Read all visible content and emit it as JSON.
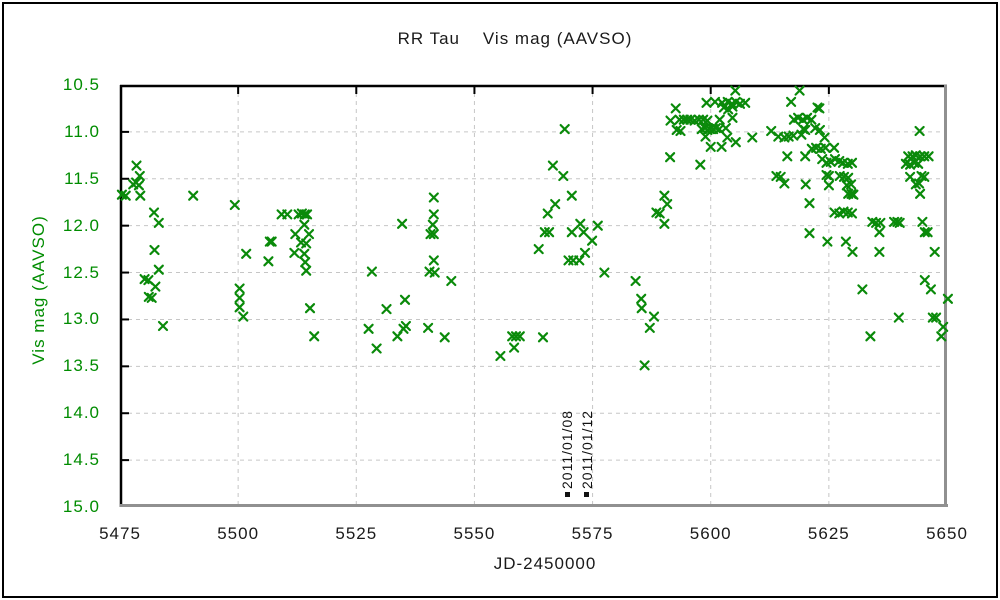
{
  "figure": {
    "background": "#ffffff",
    "frame_color": "#000000"
  },
  "chart_data": {
    "type": "scatter",
    "title": "RR Tau    Vis mag (AAVSO)",
    "xlabel": "JD-2450000",
    "ylabel": "Vis mag (AAVSO)",
    "xlim": [
      5475,
      5650
    ],
    "ylim_top": 10.5,
    "ylim_bottom": 15.0,
    "x_ticks": [
      5475,
      5500,
      5525,
      5550,
      5575,
      5600,
      5625,
      5650
    ],
    "y_ticks": [
      10.5,
      11.0,
      11.5,
      12.0,
      12.5,
      13.0,
      13.5,
      14.0,
      14.5,
      15.0
    ],
    "grid": true,
    "legend": "none",
    "marker": "x",
    "marker_color": "#0a8a0a",
    "y_label_color": "#008c00",
    "x_label_color": "#1a1a1a",
    "grid_color": "#c6c6c6",
    "axis_dark_color": "#000000",
    "axis_gray_color": "#909090",
    "annotations": [
      {
        "label": "2011/01/08",
        "x": 5569.6,
        "marker_mag": 14.87
      },
      {
        "label": "2011/01/12",
        "x": 5573.8,
        "marker_mag": 14.87
      }
    ],
    "points": [
      [
        5475.4,
        11.67
      ],
      [
        5476.2,
        11.68
      ],
      [
        5477.8,
        11.56
      ],
      [
        5478.4,
        11.54
      ],
      [
        5478.5,
        11.36
      ],
      [
        5479.0,
        11.57
      ],
      [
        5479.2,
        11.47
      ],
      [
        5479.3,
        11.68
      ],
      [
        5480.2,
        12.57
      ],
      [
        5481.0,
        12.58
      ],
      [
        5481.1,
        12.76
      ],
      [
        5481.7,
        12.77
      ],
      [
        5482.2,
        11.86
      ],
      [
        5482.3,
        12.26
      ],
      [
        5482.5,
        12.65
      ],
      [
        5483.2,
        11.97
      ],
      [
        5483.2,
        12.47
      ],
      [
        5484.1,
        13.07
      ],
      [
        5490.5,
        11.68
      ],
      [
        5499.3,
        11.78
      ],
      [
        5500.3,
        12.67
      ],
      [
        5500.3,
        12.77
      ],
      [
        5500.3,
        12.87
      ],
      [
        5501.1,
        12.97
      ],
      [
        5501.7,
        12.3
      ],
      [
        5506.4,
        12.38
      ],
      [
        5506.7,
        12.17
      ],
      [
        5507.1,
        12.17
      ],
      [
        5509.2,
        11.88
      ],
      [
        5510.4,
        11.88
      ],
      [
        5511.9,
        12.29
      ],
      [
        5512.1,
        12.09
      ],
      [
        5512.8,
        11.88
      ],
      [
        5513.3,
        12.18
      ],
      [
        5513.5,
        11.87
      ],
      [
        5514.0,
        11.99
      ],
      [
        5514.0,
        12.3
      ],
      [
        5514.1,
        11.88
      ],
      [
        5514.2,
        12.39
      ],
      [
        5514.4,
        12.19
      ],
      [
        5514.4,
        12.48
      ],
      [
        5514.6,
        11.88
      ],
      [
        5515.0,
        12.09
      ],
      [
        5515.2,
        12.88
      ],
      [
        5516.1,
        13.18
      ],
      [
        5527.6,
        13.1
      ],
      [
        5528.3,
        12.49
      ],
      [
        5529.3,
        13.31
      ],
      [
        5531.4,
        12.89
      ],
      [
        5533.7,
        13.18
      ],
      [
        5534.7,
        11.98
      ],
      [
        5535.0,
        13.1
      ],
      [
        5535.3,
        12.79
      ],
      [
        5535.5,
        13.07
      ],
      [
        5540.2,
        13.09
      ],
      [
        5540.5,
        12.49
      ],
      [
        5540.7,
        12.09
      ],
      [
        5541.2,
        11.99
      ],
      [
        5541.4,
        11.7
      ],
      [
        5541.4,
        11.88
      ],
      [
        5541.4,
        12.09
      ],
      [
        5541.4,
        12.37
      ],
      [
        5541.6,
        12.5
      ],
      [
        5543.7,
        13.19
      ],
      [
        5545.1,
        12.59
      ],
      [
        5555.5,
        13.39
      ],
      [
        5558.0,
        13.18
      ],
      [
        5558.4,
        13.3
      ],
      [
        5558.8,
        13.18
      ],
      [
        5559.6,
        13.18
      ],
      [
        5563.6,
        12.25
      ],
      [
        5564.5,
        13.19
      ],
      [
        5564.9,
        12.07
      ],
      [
        5565.5,
        11.87
      ],
      [
        5565.8,
        12.07
      ],
      [
        5566.6,
        11.36
      ],
      [
        5567.1,
        11.77
      ],
      [
        5568.8,
        11.47
      ],
      [
        5569.1,
        10.97
      ],
      [
        5569.9,
        12.37
      ],
      [
        5570.6,
        11.68
      ],
      [
        5570.6,
        12.07
      ],
      [
        5570.9,
        12.37
      ],
      [
        5572.2,
        12.37
      ],
      [
        5572.4,
        11.98
      ],
      [
        5573.1,
        12.07
      ],
      [
        5573.4,
        12.29
      ],
      [
        5574.9,
        12.16
      ],
      [
        5576.1,
        12.0
      ],
      [
        5577.5,
        12.5
      ],
      [
        5584.1,
        12.59
      ],
      [
        5585.3,
        12.78
      ],
      [
        5585.4,
        12.88
      ],
      [
        5586.0,
        13.49
      ],
      [
        5587.1,
        13.09
      ],
      [
        5588.0,
        12.97
      ],
      [
        5588.5,
        11.86
      ],
      [
        5589.2,
        11.87
      ],
      [
        5590.2,
        11.68
      ],
      [
        5590.2,
        11.98
      ],
      [
        5590.8,
        11.77
      ],
      [
        5591.4,
        11.27
      ],
      [
        5591.5,
        10.88
      ],
      [
        5592.6,
        10.75
      ],
      [
        5592.8,
        10.98
      ],
      [
        5593.4,
        10.87
      ],
      [
        5593.6,
        10.99
      ],
      [
        5594.3,
        10.87
      ],
      [
        5595.0,
        10.87
      ],
      [
        5595.7,
        10.87
      ],
      [
        5596.6,
        10.88
      ],
      [
        5597.5,
        10.87
      ],
      [
        5597.8,
        11.35
      ],
      [
        5598.1,
        10.97
      ],
      [
        5598.4,
        10.87
      ],
      [
        5598.8,
        10.96
      ],
      [
        5598.9,
        11.05
      ],
      [
        5599.1,
        10.69
      ],
      [
        5599.3,
        10.88
      ],
      [
        5599.3,
        10.98
      ],
      [
        5599.8,
        10.97
      ],
      [
        5600.0,
        11.16
      ],
      [
        5600.5,
        10.97
      ],
      [
        5600.9,
        10.68
      ],
      [
        5601.1,
        10.96
      ],
      [
        5601.8,
        10.97
      ],
      [
        5601.9,
        10.87
      ],
      [
        5602.3,
        11.16
      ],
      [
        5602.4,
        10.69
      ],
      [
        5602.8,
        10.74
      ],
      [
        5603.2,
        10.96
      ],
      [
        5603.5,
        11.06
      ],
      [
        5603.6,
        10.68
      ],
      [
        5603.7,
        10.76
      ],
      [
        5604.5,
        10.7
      ],
      [
        5604.6,
        10.73
      ],
      [
        5604.6,
        10.85
      ],
      [
        5605.2,
        10.56
      ],
      [
        5605.3,
        10.68
      ],
      [
        5605.3,
        11.11
      ],
      [
        5606.2,
        10.7
      ],
      [
        5607.3,
        10.69
      ],
      [
        5608.8,
        11.06
      ],
      [
        5612.8,
        10.99
      ],
      [
        5613.9,
        11.47
      ],
      [
        5614.3,
        11.05
      ],
      [
        5614.8,
        11.48
      ],
      [
        5615.6,
        11.06
      ],
      [
        5615.6,
        11.55
      ],
      [
        5616.2,
        11.26
      ],
      [
        5616.5,
        11.05
      ],
      [
        5617.0,
        10.68
      ],
      [
        5617.5,
        11.04
      ],
      [
        5617.6,
        10.87
      ],
      [
        5618.5,
        10.85
      ],
      [
        5618.8,
        10.56
      ],
      [
        5619.2,
        11.03
      ],
      [
        5619.5,
        10.87
      ],
      [
        5619.6,
        10.97
      ],
      [
        5620.0,
        10.98
      ],
      [
        5620.0,
        11.26
      ],
      [
        5620.1,
        11.56
      ],
      [
        5620.4,
        10.85
      ],
      [
        5620.9,
        11.76
      ],
      [
        5620.9,
        12.08
      ],
      [
        5621.3,
        10.87
      ],
      [
        5621.4,
        11.18
      ],
      [
        5622.1,
        10.96
      ],
      [
        5622.3,
        11.17
      ],
      [
        5622.6,
        10.74
      ],
      [
        5623.0,
        10.75
      ],
      [
        5623.1,
        10.98
      ],
      [
        5623.3,
        11.18
      ],
      [
        5623.6,
        11.29
      ],
      [
        5624.1,
        11.06
      ],
      [
        5624.3,
        11.17
      ],
      [
        5624.5,
        11.33
      ],
      [
        5624.5,
        11.46
      ],
      [
        5624.7,
        12.17
      ],
      [
        5625.0,
        11.47
      ],
      [
        5625.0,
        11.57
      ],
      [
        5625.4,
        11.32
      ],
      [
        5626.1,
        11.17
      ],
      [
        5626.2,
        11.86
      ],
      [
        5626.3,
        11.29
      ],
      [
        5627.2,
        11.31
      ],
      [
        5627.2,
        11.87
      ],
      [
        5627.3,
        11.47
      ],
      [
        5628.0,
        11.33
      ],
      [
        5628.1,
        11.85
      ],
      [
        5628.2,
        11.48
      ],
      [
        5628.6,
        12.17
      ],
      [
        5628.8,
        11.57
      ],
      [
        5629.0,
        11.34
      ],
      [
        5629.0,
        11.86
      ],
      [
        5629.1,
        11.49
      ],
      [
        5629.1,
        11.66
      ],
      [
        5629.7,
        11.56
      ],
      [
        5629.8,
        11.66
      ],
      [
        5629.9,
        11.33
      ],
      [
        5629.9,
        11.87
      ],
      [
        5630.0,
        12.28
      ],
      [
        5630.2,
        11.67
      ],
      [
        5632.1,
        12.68
      ],
      [
        5633.8,
        13.18
      ],
      [
        5634.2,
        11.96
      ],
      [
        5635.0,
        11.97
      ],
      [
        5635.7,
        12.07
      ],
      [
        5635.7,
        12.28
      ],
      [
        5635.9,
        11.97
      ],
      [
        5638.8,
        11.96
      ],
      [
        5639.5,
        11.96
      ],
      [
        5639.8,
        12.98
      ],
      [
        5640.0,
        11.97
      ],
      [
        5641.3,
        11.34
      ],
      [
        5641.8,
        11.26
      ],
      [
        5642.2,
        11.35
      ],
      [
        5642.2,
        11.48
      ],
      [
        5642.7,
        11.26
      ],
      [
        5643.1,
        11.33
      ],
      [
        5643.4,
        11.25
      ],
      [
        5643.4,
        11.56
      ],
      [
        5643.9,
        11.34
      ],
      [
        5644.1,
        11.55
      ],
      [
        5644.2,
        10.99
      ],
      [
        5644.3,
        11.26
      ],
      [
        5644.3,
        11.66
      ],
      [
        5644.6,
        11.47
      ],
      [
        5644.8,
        11.96
      ],
      [
        5645.2,
        11.26
      ],
      [
        5645.2,
        11.48
      ],
      [
        5645.3,
        12.07
      ],
      [
        5645.3,
        12.58
      ],
      [
        5645.9,
        12.07
      ],
      [
        5646.1,
        11.26
      ],
      [
        5646.6,
        12.68
      ],
      [
        5647.0,
        12.98
      ],
      [
        5647.4,
        12.28
      ],
      [
        5647.7,
        12.98
      ],
      [
        5648.8,
        13.18
      ],
      [
        5649.2,
        13.08
      ],
      [
        5650.2,
        12.78
      ]
    ]
  }
}
